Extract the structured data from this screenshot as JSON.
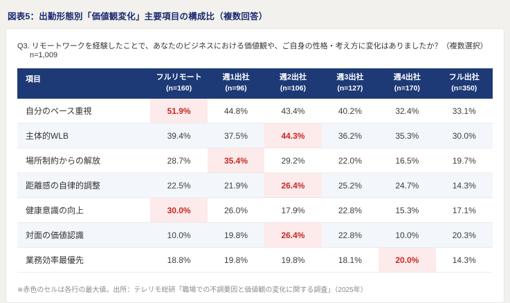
{
  "page": {
    "title": "図表5：出勤形態別「価値観変化」主要項目の構成比（複数回答）",
    "question": "Q3. リモートワークを経験したことで、あなたのビジネスにおける価値観や、ご自身の性格・考え方に変化はありましたか？（複数選択）",
    "sample": "n=1,009",
    "footnote": "※赤色のセルは各行の最大値。出所：テレリモ総研「職場での不調要因と価値観の変化に関する調査」（2025年）"
  },
  "colors": {
    "header_bg": "#1e3a76",
    "highlight_bg": "#fdeaea",
    "highlight_text": "#c62828",
    "title_text": "#1a2a6e",
    "alt_row_bg": "#f3f6fb"
  },
  "chart_data": {
    "type": "table",
    "title": "図表5：出勤形態別「価値観変化」主要項目の構成比（複数回答）",
    "note": "red cell = max of each row",
    "columns": [
      {
        "label": "項目",
        "sub": ""
      },
      {
        "label": "フルリモート",
        "sub": "(n=160)"
      },
      {
        "label": "週1出社",
        "sub": "(n=96)"
      },
      {
        "label": "週2出社",
        "sub": "(n=106)"
      },
      {
        "label": "週3出社",
        "sub": "(n=127)"
      },
      {
        "label": "週4出社",
        "sub": "(n=170)"
      },
      {
        "label": "フル出社",
        "sub": "(n=350)"
      }
    ],
    "rows": [
      {
        "label": "自分のペース重視",
        "values": [
          "51.9%",
          "44.8%",
          "43.4%",
          "40.2%",
          "32.4%",
          "33.1%"
        ],
        "max_index": 0
      },
      {
        "label": "主体的WLB",
        "values": [
          "39.4%",
          "37.5%",
          "44.3%",
          "36.2%",
          "35.3%",
          "30.0%"
        ],
        "max_index": 2
      },
      {
        "label": "場所制約からの解放",
        "values": [
          "28.7%",
          "35.4%",
          "29.2%",
          "22.0%",
          "16.5%",
          "19.7%"
        ],
        "max_index": 1
      },
      {
        "label": "距離感の自律的調整",
        "values": [
          "22.5%",
          "21.9%",
          "26.4%",
          "25.2%",
          "24.7%",
          "14.3%"
        ],
        "max_index": 2
      },
      {
        "label": "健康意識の向上",
        "values": [
          "30.0%",
          "26.0%",
          "17.9%",
          "22.8%",
          "15.3%",
          "17.1%"
        ],
        "max_index": 0
      },
      {
        "label": "対面の価値認識",
        "values": [
          "10.0%",
          "19.8%",
          "26.4%",
          "22.8%",
          "10.0%",
          "20.3%"
        ],
        "max_index": 2
      },
      {
        "label": "業務効率最優先",
        "values": [
          "18.8%",
          "19.8%",
          "19.8%",
          "18.1%",
          "20.0%",
          "14.3%"
        ],
        "max_index": 4
      }
    ]
  }
}
